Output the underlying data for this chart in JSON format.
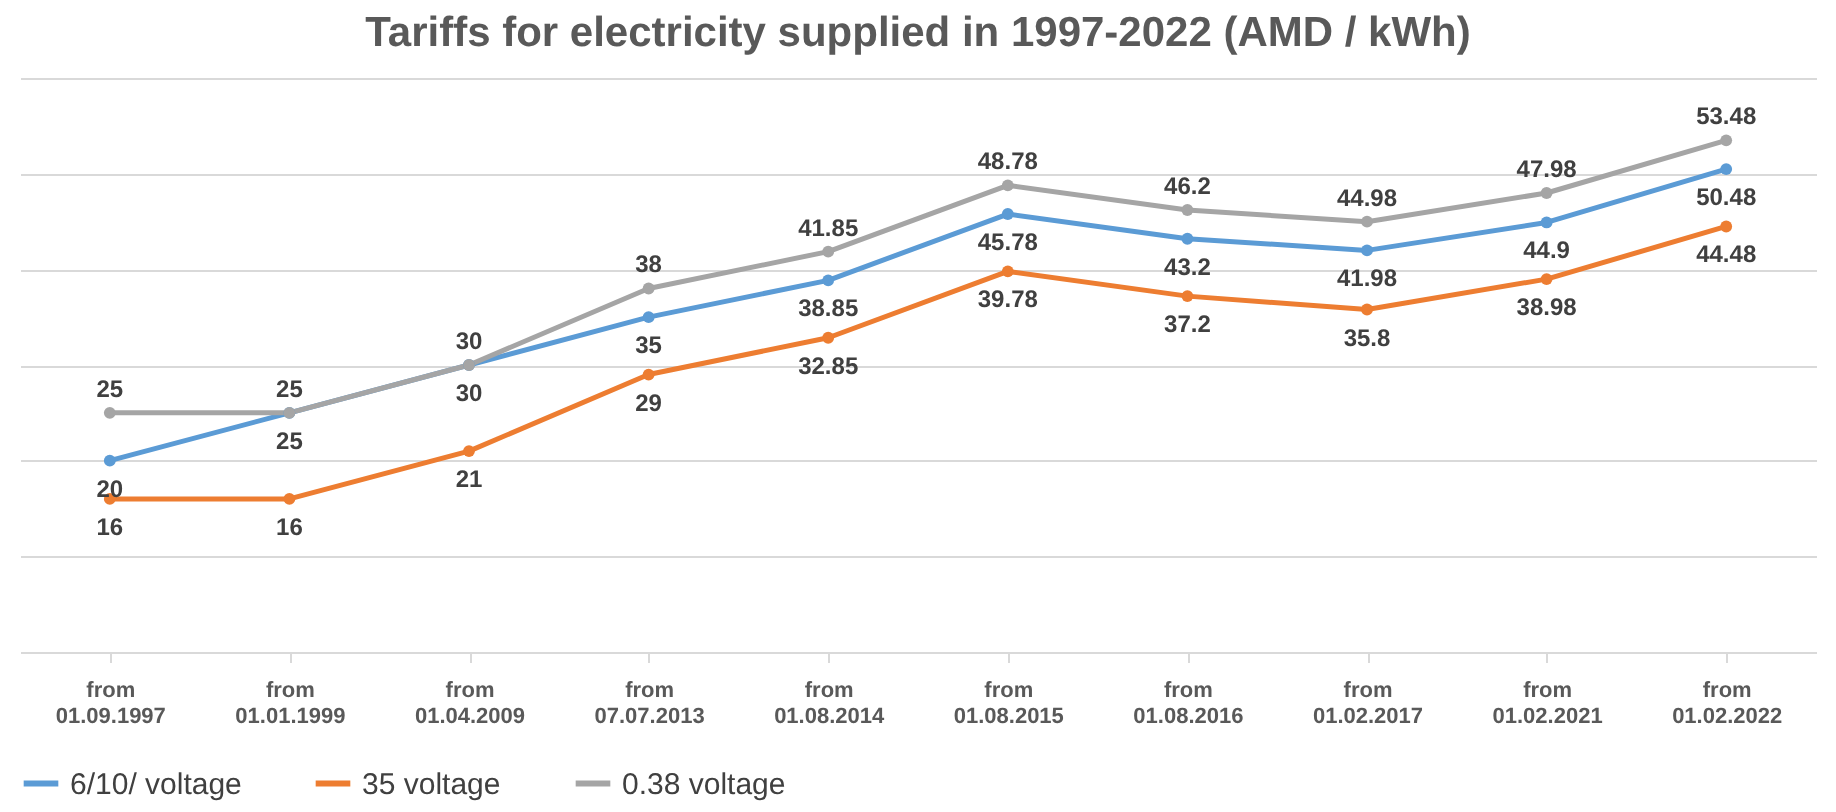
{
  "chart_data": {
    "type": "line",
    "title": "Tariffs for electricity supplied in 1997-2022 (AMD / kWh)",
    "categories": [
      "from 01.09.1997",
      "from 01.01.1999",
      "from 01.04.2009",
      "from 07.07.2013",
      "from 01.08.2014",
      "from 01.08.2015",
      "from 01.08.2016",
      "from 01.02.2017",
      "from 01.02.2021",
      "from 01.02.2022"
    ],
    "series": [
      {
        "name": "6/10/ voltage",
        "color": "#5b9bd5",
        "values": [
          20,
          25,
          30,
          35,
          38.85,
          45.78,
          43.2,
          41.98,
          44.9,
          50.48
        ]
      },
      {
        "name": "35 voltage",
        "color": "#ed7d31",
        "values": [
          16,
          16,
          21,
          29,
          32.85,
          39.78,
          37.2,
          35.8,
          38.98,
          44.48
        ]
      },
      {
        "name": "0.38 voltage",
        "color": "#a5a5a5",
        "values": [
          25,
          25,
          30,
          38,
          41.85,
          48.78,
          46.2,
          44.98,
          47.98,
          53.48
        ]
      }
    ],
    "ylim": [
      0,
      60
    ],
    "yticks": [
      {
        "value": 10,
        "label": null
      },
      {
        "value": 20,
        "label": null
      },
      {
        "value": 30,
        "label": null
      },
      {
        "value": 40,
        "label": null
      },
      {
        "value": 50,
        "label": null
      },
      {
        "value": 60,
        "label": null
      }
    ],
    "grid": "y",
    "legend": "bottom",
    "marker": "circle",
    "data_labels": true,
    "tick_labels": "x"
  }
}
